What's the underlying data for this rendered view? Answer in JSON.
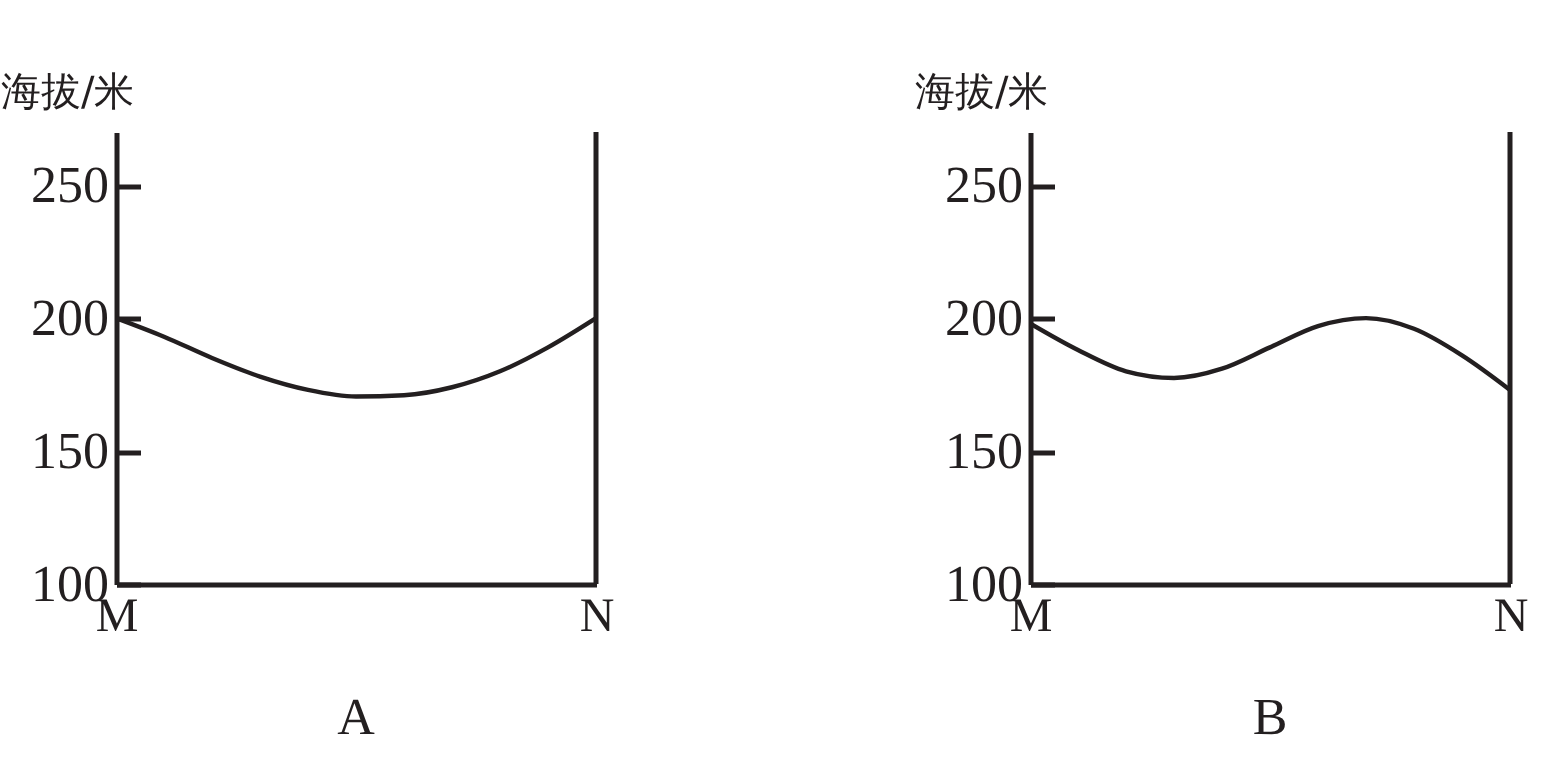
{
  "chart_data": [
    {
      "type": "line",
      "title": "A",
      "ylabel": "海拔/米",
      "categories": [
        "M",
        null,
        null,
        null,
        null,
        null,
        null,
        null,
        null,
        null,
        "N"
      ],
      "series": [
        {
          "color": "#231f20",
          "values": [
            200,
            193,
            185,
            178,
            173,
            170.5,
            171,
            174,
            180,
            189,
            200
          ]
        }
      ],
      "ylim": [
        100,
        270
      ],
      "yticks": [
        100,
        150,
        200,
        250
      ],
      "grid": false,
      "marker": "none"
    },
    {
      "type": "line",
      "title": "B",
      "ylabel": "海拔/米",
      "categories": [
        "M",
        null,
        null,
        null,
        null,
        null,
        null,
        null,
        null,
        null,
        "N"
      ],
      "series": [
        {
          "color": "#231f20",
          "values": [
            198,
            188,
            180,
            177.5,
            181,
            189,
            197,
            200,
            196,
            186,
            173
          ]
        }
      ],
      "ylim": [
        100,
        270
      ],
      "yticks": [
        100,
        150,
        200,
        250
      ],
      "grid": false,
      "marker": "none"
    }
  ]
}
